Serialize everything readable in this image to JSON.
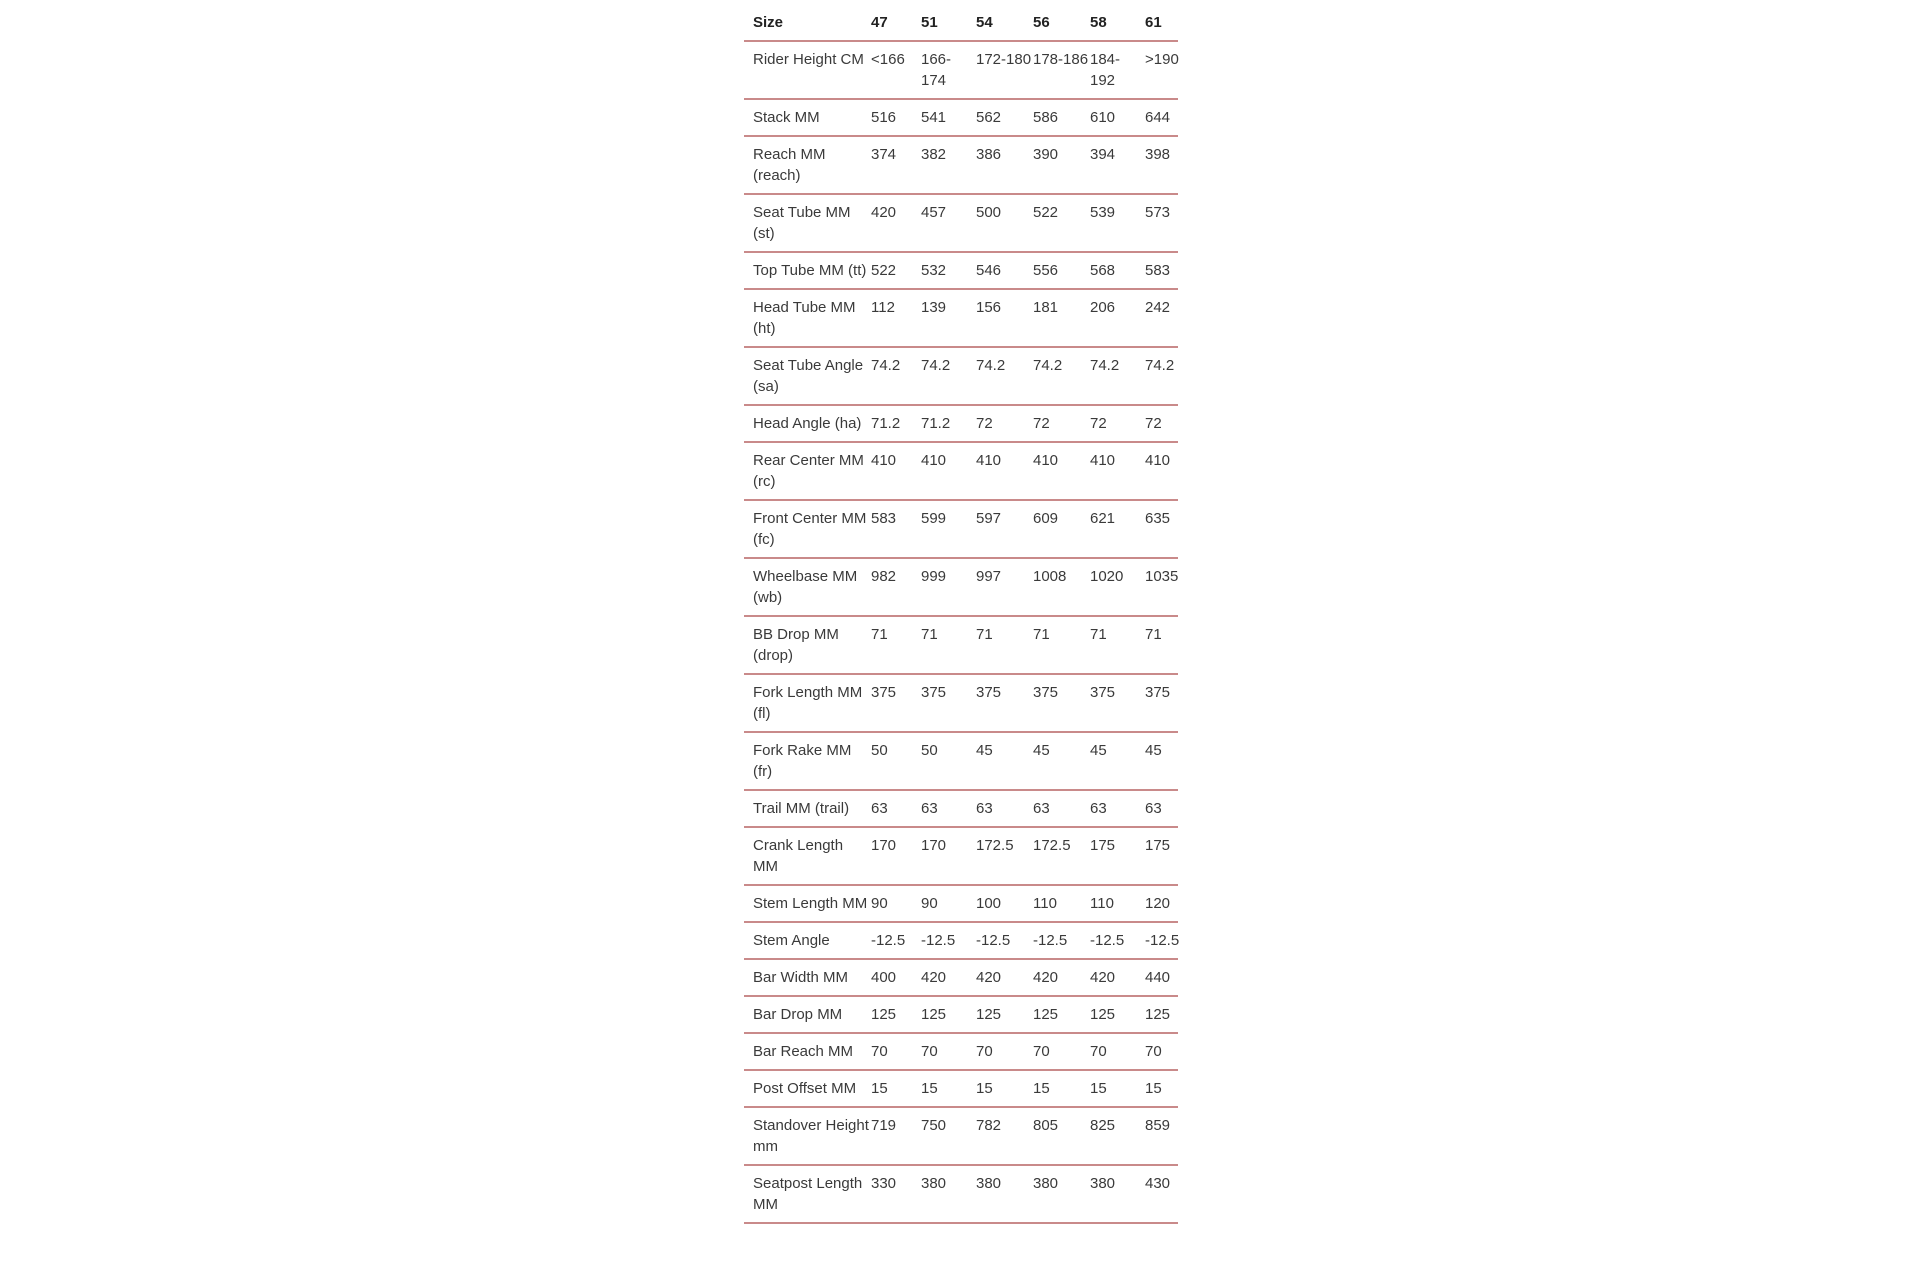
{
  "header": [
    "Size",
    "47",
    "51",
    "54",
    "56",
    "58",
    "61"
  ],
  "rows": [
    {
      "label": "Rider Height CM",
      "values": [
        "<166",
        "166-174",
        "172-180",
        "178-186",
        "184-192",
        ">190"
      ]
    },
    {
      "label": "Stack MM",
      "values": [
        "516",
        "541",
        "562",
        "586",
        "610",
        "644"
      ]
    },
    {
      "label": "Reach MM (reach)",
      "values": [
        "374",
        "382",
        "386",
        "390",
        "394",
        "398"
      ]
    },
    {
      "label": "Seat Tube MM (st)",
      "values": [
        "420",
        "457",
        "500",
        "522",
        "539",
        "573"
      ]
    },
    {
      "label": "Top Tube MM (tt)",
      "values": [
        "522",
        "532",
        "546",
        "556",
        "568",
        "583"
      ]
    },
    {
      "label": "Head Tube MM (ht)",
      "values": [
        "112",
        "139",
        "156",
        "181",
        "206",
        "242"
      ]
    },
    {
      "label": "Seat Tube Angle (sa)",
      "values": [
        "74.2",
        "74.2",
        "74.2",
        "74.2",
        "74.2",
        "74.2"
      ]
    },
    {
      "label": "Head Angle (ha)",
      "values": [
        "71.2",
        "71.2",
        "72",
        "72",
        "72",
        "72"
      ]
    },
    {
      "label": "Rear Center MM (rc)",
      "values": [
        "410",
        "410",
        "410",
        "410",
        "410",
        "410"
      ]
    },
    {
      "label": "Front Center MM (fc)",
      "values": [
        "583",
        "599",
        "597",
        "609",
        "621",
        "635"
      ]
    },
    {
      "label": "Wheelbase MM (wb)",
      "values": [
        "982",
        "999",
        "997",
        "1008",
        "1020",
        "1035"
      ]
    },
    {
      "label": "BB Drop MM (drop)",
      "values": [
        "71",
        "71",
        "71",
        "71",
        "71",
        "71"
      ]
    },
    {
      "label": "Fork Length MM (fl)",
      "values": [
        "375",
        "375",
        "375",
        "375",
        "375",
        "375"
      ]
    },
    {
      "label": "Fork Rake MM (fr)",
      "values": [
        "50",
        "50",
        "45",
        "45",
        "45",
        "45"
      ]
    },
    {
      "label": "Trail MM (trail)",
      "values": [
        "63",
        "63",
        "63",
        "63",
        "63",
        "63"
      ]
    },
    {
      "label": "Crank Length MM",
      "values": [
        "170",
        "170",
        "172.5",
        "172.5",
        "175",
        "175"
      ]
    },
    {
      "label": "Stem Length MM",
      "values": [
        "90",
        "90",
        "100",
        "110",
        "110",
        "120"
      ]
    },
    {
      "label": "Stem Angle",
      "values": [
        "-12.5",
        "-12.5",
        "-12.5",
        "-12.5",
        "-12.5",
        "-12.5"
      ]
    },
    {
      "label": "Bar Width MM",
      "values": [
        "400",
        "420",
        "420",
        "420",
        "420",
        "440"
      ]
    },
    {
      "label": "Bar Drop MM",
      "values": [
        "125",
        "125",
        "125",
        "125",
        "125",
        "125"
      ]
    },
    {
      "label": "Bar Reach MM",
      "values": [
        "70",
        "70",
        "70",
        "70",
        "70",
        "70"
      ]
    },
    {
      "label": "Post Offset MM",
      "values": [
        "15",
        "15",
        "15",
        "15",
        "15",
        "15"
      ]
    },
    {
      "label": "Standover Height mm",
      "values": [
        "719",
        "750",
        "782",
        "805",
        "825",
        "859"
      ]
    },
    {
      "label": "Seatpost Length MM",
      "values": [
        "330",
        "380",
        "380",
        "380",
        "380",
        "430"
      ]
    }
  ]
}
